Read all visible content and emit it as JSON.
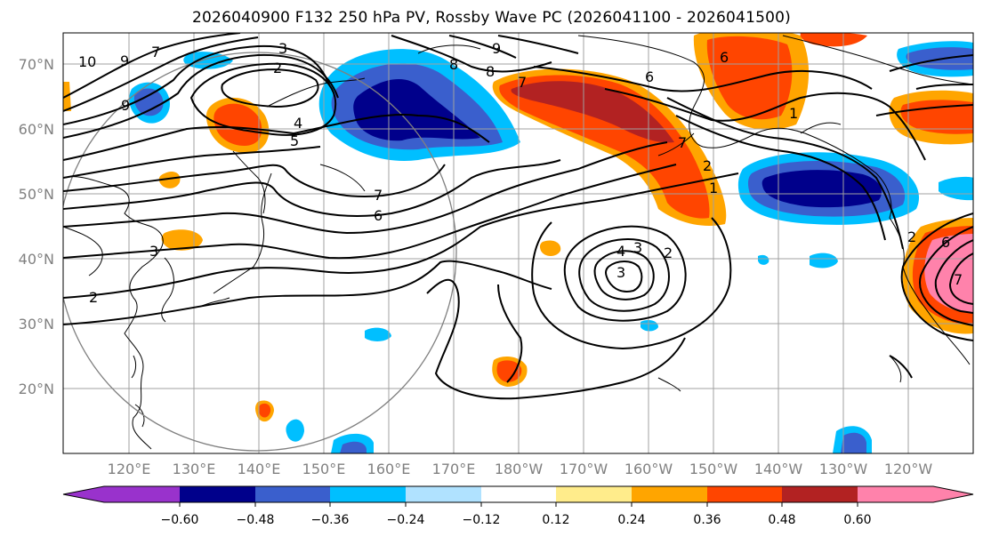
{
  "title": "2026040900 F132 250 hPa PV, Rossby Wave PC (2026041100 - 2026041500)",
  "map": {
    "lat_ticks": [
      "70°N",
      "60°N",
      "50°N",
      "40°N",
      "30°N",
      "20°N"
    ],
    "lon_ticks": [
      "120°E",
      "130°E",
      "140°E",
      "150°E",
      "160°E",
      "170°E",
      "180°W",
      "170°W",
      "160°W",
      "150°W",
      "140°W",
      "130°W",
      "120°W"
    ],
    "tick_color": "#808080"
  },
  "colorbar": {
    "colors": [
      "#9932cc",
      "#00008b",
      "#3a5fcd",
      "#00bfff",
      "#b0e2ff",
      "#ffffff",
      "#ffec8b",
      "#ffa500",
      "#ff4500",
      "#b22222",
      "#ff82ab"
    ],
    "tick_labels": [
      "−0.60",
      "−0.48",
      "−0.36",
      "−0.24",
      "−0.12",
      "0.12",
      "0.24",
      "0.36",
      "0.48",
      "0.60"
    ]
  },
  "contour_labels": [
    {
      "text": "10"
    },
    {
      "text": "9"
    },
    {
      "text": "7"
    },
    {
      "text": "3"
    },
    {
      "text": "2"
    },
    {
      "text": "9"
    },
    {
      "text": "4"
    },
    {
      "text": "5"
    },
    {
      "text": "9"
    },
    {
      "text": "8"
    },
    {
      "text": "8"
    },
    {
      "text": "7"
    },
    {
      "text": "6"
    },
    {
      "text": "6"
    },
    {
      "text": "7"
    },
    {
      "text": "1"
    },
    {
      "text": "2"
    },
    {
      "text": "1"
    },
    {
      "text": "7"
    },
    {
      "text": "6"
    },
    {
      "text": "3"
    },
    {
      "text": "2"
    },
    {
      "text": "4"
    },
    {
      "text": "3"
    },
    {
      "text": "2"
    },
    {
      "text": "3"
    },
    {
      "text": "2"
    },
    {
      "text": "6"
    },
    {
      "text": "7"
    }
  ]
}
